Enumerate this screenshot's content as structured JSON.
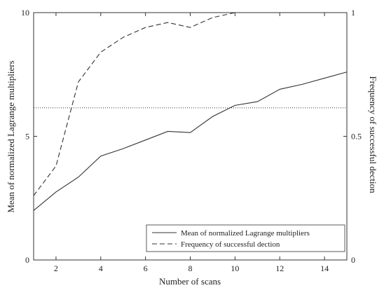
{
  "chart_data": {
    "type": "line",
    "xlabel": "Number of scans",
    "ylabel_left": "Mean of normalized Lagrange multipliers",
    "ylabel_right": "Frequency of successful dection",
    "xlim": [
      1,
      15
    ],
    "ylim_left": [
      0,
      10
    ],
    "ylim_right": [
      0,
      1
    ],
    "x_ticks": [
      2,
      4,
      6,
      8,
      10,
      12,
      14
    ],
    "y_ticks_left": [
      0,
      5,
      10
    ],
    "y_ticks_right": [
      0,
      0.5,
      1
    ],
    "y_tick_labels_right": [
      "0",
      "0.5",
      "1"
    ],
    "legend_placement": "bottom-right",
    "grid": false,
    "series": [
      {
        "name": "Mean of normalized Lagrange multipliers",
        "axis": "left",
        "style": "solid",
        "x": [
          1,
          2,
          3,
          4,
          5,
          6,
          7,
          8,
          9,
          10,
          11,
          12,
          13,
          14,
          15
        ],
        "y": [
          2.0,
          2.75,
          3.35,
          4.2,
          4.5,
          4.85,
          5.2,
          5.15,
          5.8,
          6.25,
          6.4,
          6.9,
          7.1,
          7.35,
          7.6
        ]
      },
      {
        "name": "Frequency of successful dection",
        "axis": "right",
        "style": "dashed",
        "x": [
          1,
          2,
          3,
          4,
          5,
          6,
          7,
          8,
          9,
          10,
          11,
          12,
          13,
          14,
          15
        ],
        "y": [
          0.26,
          0.38,
          0.72,
          0.84,
          0.9,
          0.94,
          0.96,
          0.94,
          0.98,
          1.0,
          1.0,
          1.0,
          1.0,
          1.0,
          1.0
        ]
      }
    ],
    "reference_line": {
      "axis": "left",
      "y": 6.15,
      "style": "dotted"
    }
  }
}
